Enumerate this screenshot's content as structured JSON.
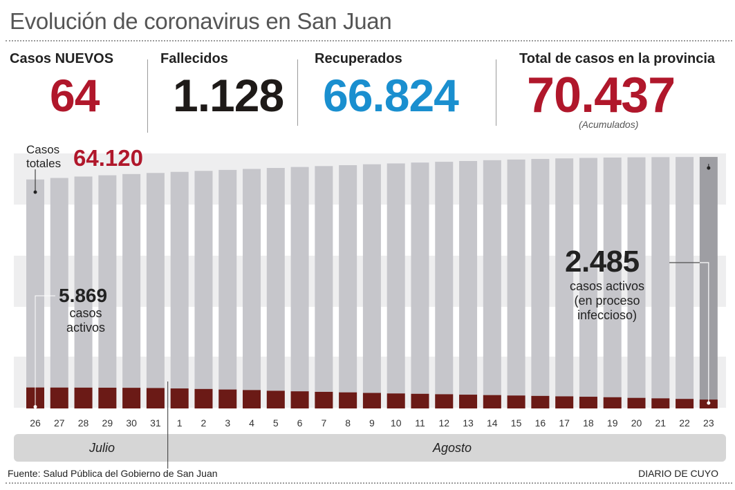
{
  "title": "Evolución de coronavirus en San Juan",
  "stats": {
    "nuevos": {
      "label": "Casos NUEVOS",
      "value": "64",
      "color": "#b0172b"
    },
    "fallecidos": {
      "label": "Fallecidos",
      "value": "1.128",
      "color": "#1e1a18"
    },
    "recuperados": {
      "label": "Recuperados",
      "value": "66.824",
      "color": "#1a8fcf"
    },
    "total": {
      "label": "Total de casos en la provincia",
      "value": "70.437",
      "note": "(Acumulados)",
      "color": "#b0172b"
    }
  },
  "annotations": {
    "totales_label": "Casos\ntotales",
    "totales_value": "64.120",
    "activos_start_value": "5.869",
    "activos_start_label": "casos\nactivos",
    "activos_end_value": "2.485",
    "activos_end_label": "casos activos\n(en proceso\ninfeccioso)"
  },
  "months": {
    "julio": "Julio",
    "agosto": "Agosto"
  },
  "footer": {
    "source": "Fuente: Salud Pública del Gobierno de San Juan",
    "brand": "DIARIO DE CUYO"
  },
  "chart_data": {
    "type": "bar",
    "categories": [
      "26",
      "27",
      "28",
      "29",
      "30",
      "31",
      "1",
      "2",
      "3",
      "4",
      "5",
      "6",
      "7",
      "8",
      "9",
      "10",
      "11",
      "12",
      "13",
      "14",
      "15",
      "16",
      "17",
      "18",
      "19",
      "20",
      "21",
      "22",
      "23"
    ],
    "ylim": [
      0,
      72000
    ],
    "series": [
      {
        "name": "Casos totales",
        "color": "#c6c6cb",
        "last_color": "#9e9ea3",
        "values": [
          64120,
          64550,
          64950,
          65300,
          65650,
          65950,
          66250,
          66530,
          66800,
          67080,
          67350,
          67620,
          67880,
          68130,
          68380,
          68620,
          68860,
          69080,
          69300,
          69520,
          69710,
          69880,
          70030,
          70160,
          70270,
          70330,
          70380,
          70415,
          70437
        ]
      },
      {
        "name": "casos activos",
        "color": "#6b1a16",
        "values": [
          5869,
          5850,
          5830,
          5810,
          5780,
          5720,
          5600,
          5450,
          5300,
          5150,
          4950,
          4800,
          4650,
          4500,
          4350,
          4200,
          4100,
          3980,
          3860,
          3740,
          3620,
          3510,
          3390,
          3280,
          3140,
          2960,
          2830,
          2670,
          2485
        ]
      }
    ],
    "group_months": [
      {
        "label": "Julio",
        "span": 6
      },
      {
        "label": "Agosto",
        "span": 23
      }
    ]
  }
}
